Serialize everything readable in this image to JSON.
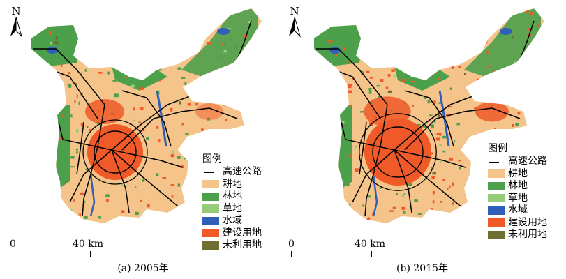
{
  "panels": [
    {
      "id": "a",
      "north": "N",
      "caption": "(a) 2005年",
      "legend_title": "图例",
      "scale": {
        "start": "0",
        "end": "40 km"
      }
    },
    {
      "id": "b",
      "north": "N",
      "caption": "(b) 2015年",
      "legend_title": "图例",
      "scale": {
        "start": "0",
        "end": "40 km"
      }
    }
  ],
  "legend_items": [
    {
      "label": "高速公路",
      "type": "line",
      "color": "#000000"
    },
    {
      "label": "耕地",
      "type": "fill",
      "color": "#F5C48A"
    },
    {
      "label": "林地",
      "type": "fill",
      "color": "#4CA04B"
    },
    {
      "label": "草地",
      "type": "fill",
      "color": "#96CC79"
    },
    {
      "label": "水域",
      "type": "fill",
      "color": "#2F5FB8"
    },
    {
      "label": "建设用地",
      "type": "fill",
      "color": "#EF5A28"
    },
    {
      "label": "未利用地",
      "type": "fill",
      "color": "#6E6E30"
    }
  ]
}
